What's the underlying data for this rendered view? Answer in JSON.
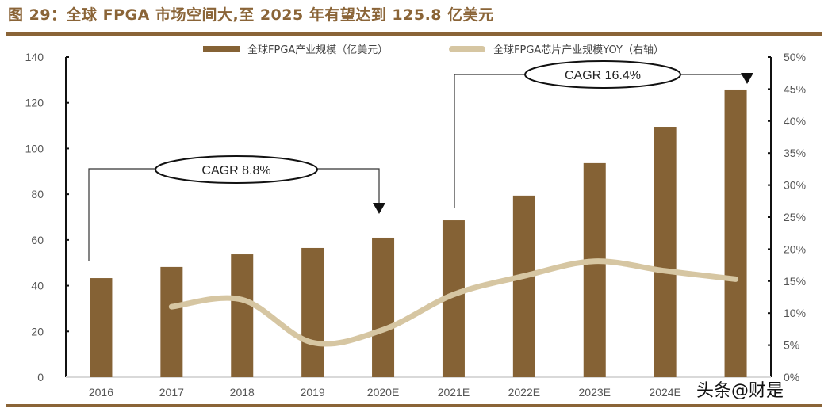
{
  "header": {
    "title": "图 29：全球 FPGA 市场空间大,至 2025 年有望达到 125.8 亿美元"
  },
  "legend": {
    "bar_label": "全球FPGA产业规模（亿美元）",
    "line_label": "全球FPGA芯片产业规模YOY（右轴）"
  },
  "annotations": {
    "cagr_1": "CAGR 8.8%",
    "cagr_2": "CAGR 16.4%"
  },
  "watermark": "头条@财是",
  "colors": {
    "bar": "#856235",
    "line": "#d6c6a2",
    "title": "#8a6437",
    "rule": "#8a6437"
  },
  "chart_data": {
    "type": "bar+line",
    "title": "全球 FPGA 市场空间大,至 2025 年有望达到 125.8 亿美元",
    "categories": [
      "2016",
      "2017",
      "2018",
      "2019",
      "2020E",
      "2021E",
      "2022E",
      "2023E",
      "2024E",
      "2025E"
    ],
    "series": [
      {
        "name": "全球FPGA产业规模（亿美元）",
        "type": "bar",
        "axis": "left",
        "values": [
          43.3,
          48.2,
          53.7,
          56.5,
          61.0,
          68.6,
          79.4,
          93.6,
          109.5,
          125.8
        ]
      },
      {
        "name": "全球FPGA芯片产业规模YOY（右轴）",
        "type": "line",
        "axis": "right",
        "values": [
          null,
          11.0,
          12.1,
          5.4,
          7.4,
          12.9,
          15.8,
          18.1,
          16.6,
          15.3
        ]
      }
    ],
    "left_axis": {
      "ticks": [
        "0",
        "20",
        "40",
        "60",
        "80",
        "100",
        "120",
        "140"
      ],
      "ylim": [
        0,
        140
      ]
    },
    "right_axis": {
      "ticks": [
        "0%",
        "5%",
        "10%",
        "15%",
        "20%",
        "25%",
        "30%",
        "35%",
        "40%",
        "45%",
        "50%"
      ],
      "ylim": [
        0,
        50
      ]
    },
    "annotations": [
      {
        "text": "CAGR 8.8%",
        "from": "2016",
        "to": "2020E"
      },
      {
        "text": "CAGR 16.4%",
        "from": "2021E",
        "to": "2025E"
      }
    ],
    "legend_position": "top",
    "grid": false,
    "xlabel": "",
    "ylabel": ""
  }
}
